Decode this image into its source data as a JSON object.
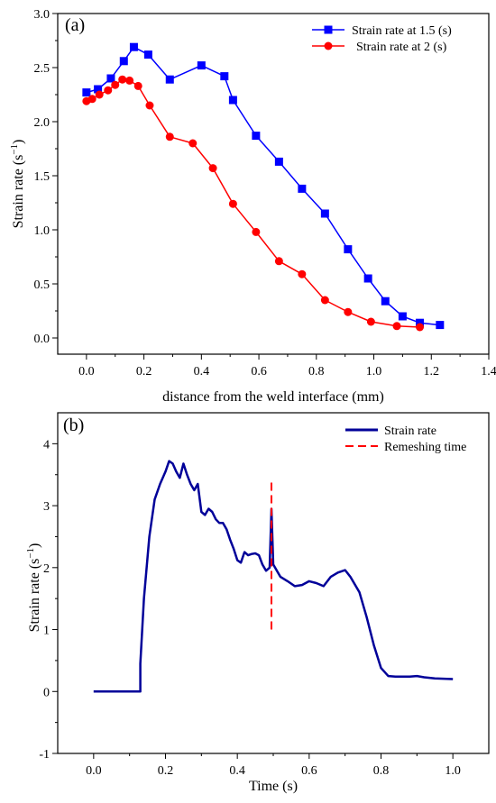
{
  "chart_data": [
    {
      "panel": "(a)",
      "type": "line",
      "xlabel": "distance from the weld interface (mm)",
      "ylabel_main": "Strain rate (s",
      "ylabel_sup": "−1",
      "ylabel_close": ")",
      "xlim": [
        -0.1,
        1.4
      ],
      "ylim": [
        -0.15,
        3.0
      ],
      "xticks": [
        0.0,
        0.2,
        0.4,
        0.6,
        0.8,
        1.0,
        1.2,
        1.4
      ],
      "xtick_labels": [
        "0.0",
        "0.2",
        "0.4",
        "0.6",
        "0.8",
        "1.0",
        "1.2",
        "1.4"
      ],
      "yticks": [
        0.0,
        0.5,
        1.0,
        1.5,
        2.0,
        2.5,
        3.0
      ],
      "ytick_labels": [
        "0.0",
        "0.5",
        "1.0",
        "1.5",
        "2.0",
        "2.5",
        "3.0"
      ],
      "legend_position": "top-right",
      "series": [
        {
          "name": "Strain rate at 1.5 (s)",
          "color": "#0000ff",
          "marker": "square",
          "x": [
            0.0,
            0.04,
            0.085,
            0.13,
            0.165,
            0.215,
            0.29,
            0.4,
            0.48,
            0.51,
            0.59,
            0.67,
            0.75,
            0.83,
            0.91,
            0.98,
            1.04,
            1.1,
            1.16,
            1.23
          ],
          "y": [
            2.27,
            2.3,
            2.4,
            2.56,
            2.69,
            2.62,
            2.39,
            2.52,
            2.42,
            2.2,
            1.87,
            1.63,
            1.38,
            1.15,
            0.82,
            0.55,
            0.34,
            0.2,
            0.14,
            0.12
          ]
        },
        {
          "name": "Strain rate at 2 (s)",
          "color": "#ff0000",
          "marker": "circle",
          "x": [
            0.0,
            0.02,
            0.045,
            0.075,
            0.1,
            0.125,
            0.15,
            0.18,
            0.22,
            0.29,
            0.37,
            0.44,
            0.51,
            0.59,
            0.67,
            0.75,
            0.83,
            0.91,
            0.99,
            1.08,
            1.16
          ],
          "y": [
            2.19,
            2.21,
            2.25,
            2.29,
            2.34,
            2.39,
            2.38,
            2.33,
            2.15,
            1.86,
            1.8,
            1.57,
            1.24,
            0.98,
            0.71,
            0.59,
            0.35,
            0.24,
            0.15,
            0.11,
            0.1
          ]
        }
      ]
    },
    {
      "panel": "(b)",
      "type": "line",
      "xlabel": "Time (s)",
      "ylabel_main": "Strain rate (s",
      "ylabel_sup": "−1",
      "ylabel_close": ")",
      "xlim": [
        -0.1,
        1.1
      ],
      "ylim": [
        -1,
        4.5
      ],
      "xticks": [
        0.0,
        0.2,
        0.4,
        0.6,
        0.8,
        1.0
      ],
      "xtick_labels": [
        "0.0",
        "0.2",
        "0.4",
        "0.6",
        "0.8",
        "1.0"
      ],
      "yticks": [
        -1,
        0,
        1,
        2,
        3,
        4
      ],
      "ytick_labels": [
        "-1",
        "0",
        "1",
        "2",
        "3",
        "4"
      ],
      "legend_position": "top-right",
      "series": [
        {
          "name": "Strain rate",
          "color": "#000099",
          "style": "solid",
          "x": [
            0.0,
            0.13,
            0.13,
            0.14,
            0.155,
            0.17,
            0.185,
            0.2,
            0.21,
            0.22,
            0.23,
            0.24,
            0.25,
            0.26,
            0.27,
            0.28,
            0.29,
            0.3,
            0.31,
            0.32,
            0.33,
            0.34,
            0.35,
            0.36,
            0.37,
            0.38,
            0.39,
            0.4,
            0.41,
            0.42,
            0.43,
            0.44,
            0.45,
            0.46,
            0.47,
            0.48,
            0.49,
            0.495,
            0.5,
            0.505,
            0.51,
            0.52,
            0.54,
            0.56,
            0.58,
            0.6,
            0.62,
            0.64,
            0.66,
            0.68,
            0.7,
            0.715,
            0.74,
            0.76,
            0.78,
            0.8,
            0.82,
            0.84,
            0.86,
            0.88,
            0.9,
            0.92,
            0.95,
            1.0
          ],
          "y": [
            0.0,
            0.0,
            0.45,
            1.5,
            2.5,
            3.1,
            3.35,
            3.55,
            3.72,
            3.68,
            3.55,
            3.45,
            3.68,
            3.5,
            3.35,
            3.25,
            3.35,
            2.9,
            2.85,
            2.95,
            2.9,
            2.78,
            2.72,
            2.72,
            2.62,
            2.45,
            2.3,
            2.12,
            2.08,
            2.25,
            2.2,
            2.22,
            2.23,
            2.2,
            2.05,
            1.95,
            2.0,
            2.95,
            2.05,
            2.0,
            1.95,
            1.85,
            1.78,
            1.7,
            1.72,
            1.78,
            1.75,
            1.7,
            1.85,
            1.92,
            1.96,
            1.85,
            1.6,
            1.2,
            0.75,
            0.38,
            0.25,
            0.24,
            0.24,
            0.24,
            0.25,
            0.23,
            0.21,
            0.2
          ]
        },
        {
          "name": "Remeshing time",
          "color": "#ff0000",
          "style": "dashed",
          "x": [
            0.495,
            0.495
          ],
          "y": [
            1.0,
            3.4
          ]
        }
      ]
    }
  ]
}
